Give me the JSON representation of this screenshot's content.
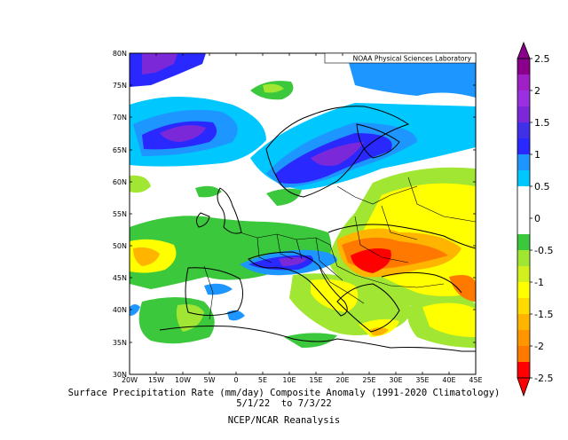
{
  "credit": "NOAA Physical Sciences Laboratory",
  "lat_labels": [
    "80N",
    "75N",
    "70N",
    "65N",
    "60N",
    "55N",
    "50N",
    "45N",
    "40N",
    "35N",
    "30N"
  ],
  "lon_labels": [
    "20W",
    "15W",
    "10W",
    "5W",
    "0",
    "5E",
    "10E",
    "15E",
    "20E",
    "25E",
    "30E",
    "35E",
    "40E",
    "45E"
  ],
  "colorbar": {
    "tick_labels": [
      "2.5",
      "2",
      "1.5",
      "1",
      "0.5",
      "0",
      "-0.5",
      "-1",
      "-1.5",
      "-2",
      "-2.5"
    ],
    "colors": {
      "dark_violet": "#8b008b",
      "magenta": "#a020c8",
      "violet": "#7b28d8",
      "blue": "#2828ff",
      "light_blue": "#1e96ff",
      "cyan": "#00c8ff",
      "white": "#ffffff",
      "green": "#3cc83c",
      "yellow_green": "#a0e632",
      "yellow": "#ffff00",
      "orange_yellow": "#ffb400",
      "orange": "#ff7800",
      "red": "#ff0000"
    }
  },
  "caption": {
    "line1": "Surface Precipitation Rate (mm/day) Composite Anomaly (1991-2020 Climatology)",
    "line2": "5/1/22  to 7/3/22",
    "line3": "NCEP/NCAR Reanalysis"
  }
}
